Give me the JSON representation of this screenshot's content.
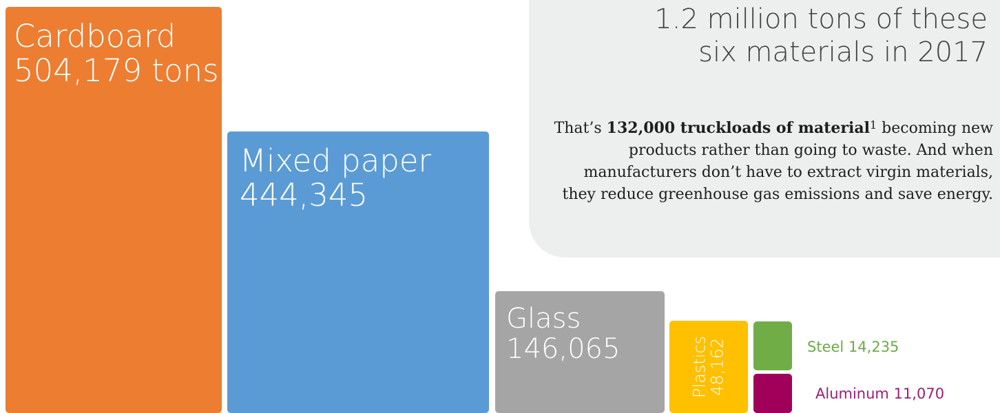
{
  "chart_data": {
    "type": "treemap",
    "unit": "tons",
    "items": [
      {
        "name": "Cardboard",
        "value": 504179,
        "value_label": "504,179 tons",
        "color": "#ed7d31"
      },
      {
        "name": "Mixed paper",
        "value": 444345,
        "value_label": "444,345",
        "color": "#5b9bd5"
      },
      {
        "name": "Glass",
        "value": 146065,
        "value_label": "146,065",
        "color": "#a5a5a5"
      },
      {
        "name": "Plastics",
        "value": 48162,
        "value_label": "48,162",
        "color": "#ffc000"
      },
      {
        "name": "Steel",
        "value": 14235,
        "value_label": "14,235",
        "color": "#70ad47"
      },
      {
        "name": "Aluminum",
        "value": 11070,
        "value_label": "11,070",
        "color": "#a0005a"
      }
    ]
  },
  "panel": {
    "title_line1": "1.2 million tons of these",
    "title_line2": "six materials in 2017",
    "body_prefix": "That’s ",
    "body_bold": "132,000 truckloads of material",
    "body_footnote": "1",
    "body_rest": "becoming new products rather than going to waste. And when manufacturers don’t have to extract virgin materials, they reduce greenhouse gas emissions and save energy."
  }
}
